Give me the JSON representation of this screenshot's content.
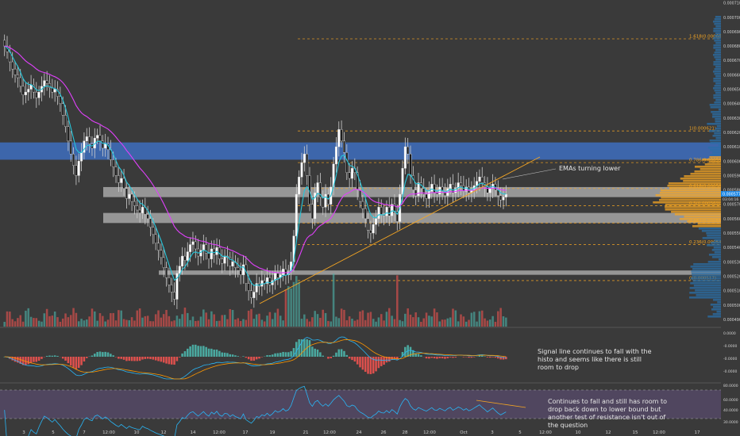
{
  "chart_data": {
    "type": "candlestick",
    "main": {
      "price_axis_ticks": [
        "0.000710",
        "0.000700",
        "0.000690",
        "0.000680",
        "0.000670",
        "0.000660",
        "0.000650",
        "0.000640",
        "0.000630",
        "0.000620",
        "0.000610",
        "0.000600",
        "0.000590",
        "0.000580",
        "0.000570",
        "0.000560",
        "0.000550",
        "0.000540",
        "0.000530",
        "0.000520",
        "0.000510",
        "0.000500",
        "0.000490"
      ],
      "y_range": [
        0.000485,
        0.000712
      ],
      "current_price": "0.000577",
      "countdown": "03:04:16",
      "fib_levels": [
        {
          "label": "1.618(0.000685)",
          "value": 0.000685,
          "color": "#f5a623"
        },
        {
          "label": "1(0.000621)",
          "value": 0.000621,
          "color": "#f5a623"
        },
        {
          "label": "0.786(0.000599)",
          "value": 0.000599,
          "color": "#f5a623"
        },
        {
          "label": "0.618(0.000582)",
          "value": 0.000581,
          "color": "#f5a623"
        },
        {
          "label": "0.5(0.000569)",
          "value": 0.000569,
          "color": "#f5a623"
        },
        {
          "label": "0.382(0.000557)",
          "value": 0.000557,
          "color": "#f5a623"
        },
        {
          "label": "0.236(0.000542)",
          "value": 0.000542,
          "color": "#f5a623"
        },
        {
          "label": "0(0.000517)",
          "value": 0.000517,
          "color": "#f5a623"
        }
      ],
      "zones": [
        {
          "from": 0.000601,
          "to": 0.000613,
          "color": "#3e6fbf",
          "name": "blue resistance zone"
        },
        {
          "from": 0.000575,
          "to": 0.000582,
          "color": "#bdbdbd",
          "name": "upper grey zone"
        },
        {
          "from": 0.000557,
          "to": 0.000564,
          "color": "#bdbdbd",
          "name": "middle grey zone"
        },
        {
          "from": 0.000521,
          "to": 0.000524,
          "color": "#bdbdbd",
          "name": "lower grey zone"
        }
      ],
      "candles_close": [
        0.00068,
        0.000676,
        0.000669,
        0.000664,
        0.00066,
        0.000658,
        0.000652,
        0.000646,
        0.000648,
        0.00065,
        0.000653,
        0.000648,
        0.000644,
        0.000648,
        0.000652,
        0.000656,
        0.000654,
        0.000651,
        0.000648,
        0.00065,
        0.000645,
        0.00064,
        0.000632,
        0.000624,
        0.000614,
        0.000605,
        0.000597,
        0.00059,
        0.0006,
        0.000606,
        0.000614,
        0.000617,
        0.000612,
        0.000609,
        0.000616,
        0.000618,
        0.000614,
        0.000609,
        0.000612,
        0.000608,
        0.000601,
        0.000596,
        0.00059,
        0.000585,
        0.000588,
        0.000581,
        0.000574,
        0.000577,
        0.000572,
        0.000569,
        0.000566,
        0.000564,
        0.000568,
        0.000563,
        0.00056,
        0.000554,
        0.000549,
        0.000543,
        0.000538,
        0.000533,
        0.000526,
        0.000519,
        0.000514,
        0.000509,
        0.000504,
        0.000522,
        0.000527,
        0.000534,
        0.000531,
        0.000537,
        0.000542,
        0.000544,
        0.000539,
        0.000534,
        0.000538,
        0.000542,
        0.000536,
        0.000532,
        0.000539,
        0.000535,
        0.00054,
        0.000532,
        0.000529,
        0.000534,
        0.000533,
        0.000527,
        0.00053,
        0.000526,
        0.000524,
        0.000521,
        0.000528,
        0.000515,
        0.00051,
        0.000505,
        0.000509,
        0.000515,
        0.000513,
        0.000517,
        0.000515,
        0.000519,
        0.000514,
        0.000517,
        0.000522,
        0.000519,
        0.000521,
        0.000525,
        0.000521,
        0.000523,
        0.00053,
        0.000548,
        0.000577,
        0.000589,
        0.000599,
        0.000605,
        0.00059,
        0.00057,
        0.00056,
        0.000578,
        0.000585,
        0.000575,
        0.000568,
        0.000577,
        0.00057,
        0.000582,
        0.000598,
        0.00061,
        0.000622,
        0.000614,
        0.000606,
        0.000592,
        0.000588,
        0.000595,
        0.000592,
        0.00058,
        0.000572,
        0.000567,
        0.00056,
        0.000552,
        0.00055,
        0.000556,
        0.00056,
        0.000568,
        0.000563,
        0.000562,
        0.000568,
        0.000562,
        0.00057,
        0.000565,
        0.000558,
        0.000577,
        0.000595,
        0.00061,
        0.000605,
        0.00059,
        0.00058,
        0.000576,
        0.000585,
        0.000581,
        0.000577,
        0.000574,
        0.000579,
        0.000584,
        0.000578,
        0.000577,
        0.000582,
        0.000579,
        0.000576,
        0.000581,
        0.000584,
        0.000578,
        0.000581,
        0.000585,
        0.000583,
        0.000579,
        0.000582,
        0.000578,
        0.00058,
        0.000583,
        0.000586,
        0.000589,
        0.000585,
        0.000582,
        0.000578,
        0.000581,
        0.000584,
        0.00058,
        0.000576,
        0.000573,
        0.000575,
        0.000577
      ],
      "ema_fast_name": "EMA (cyan)",
      "ema_slow_name": "EMA (magenta)"
    },
    "volume_profile": {
      "side": "right",
      "color_up": "#f5a623",
      "color_base": "#2a6fa8"
    },
    "macd": {
      "y_ticks": [
        "0.0000",
        "-0.0000",
        "-0.0000",
        "-0.0000"
      ],
      "histogram_color_pos": "#4db6ac",
      "histogram_color_neg": "#ef5350"
    },
    "rsi": {
      "y_ticks": [
        "80.0000",
        "60.0000",
        "40.0000",
        "30.0000"
      ],
      "upper": 70,
      "lower": 30,
      "range": [
        25,
        85
      ]
    },
    "x_tick_labels": [
      "3",
      "5",
      "7",
      "12:00",
      "10",
      "12",
      "14",
      "12:00",
      "17",
      "19",
      "21",
      "12:00",
      "24",
      "26",
      "28",
      "12:00",
      "Oct",
      "3",
      "5",
      "12:00",
      "10",
      "12",
      "15",
      "12:00",
      "17"
    ],
    "annotations": [
      "EMAs turning lower",
      "Signal line continues to fall with the histo and seems like there is still room to drop",
      "Continues to fall and still has room to drop back down to lower bound but another test of resistance isn't out of the question"
    ],
    "colors": {
      "background": "#3a3a3a",
      "up_candle": "#ffffff",
      "down_candle": "#1a1a1a",
      "ema_fast": "#26c6da",
      "ema_slow": "#e040fb",
      "trendline": "#f5a623",
      "price_label": "#1e88e5"
    }
  }
}
